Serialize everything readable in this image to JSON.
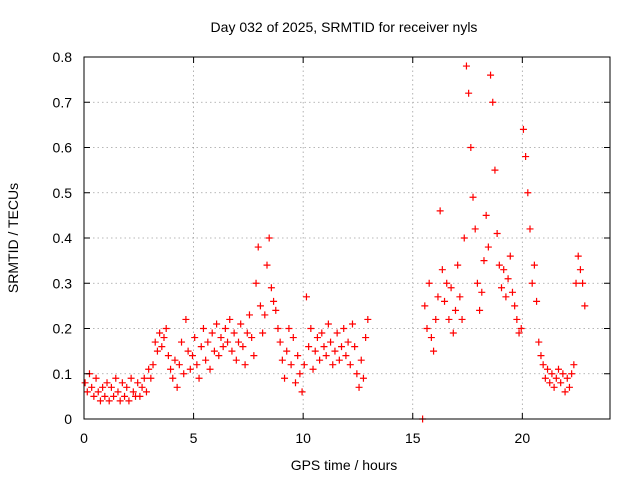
{
  "chart_data": {
    "type": "scatter",
    "title": "Day 032 of 2025, SRMTID for receiver nyls",
    "xlabel": "GPS time / hours",
    "ylabel": "SRMTID / TECUs",
    "xlim": [
      0,
      24
    ],
    "ylim": [
      0,
      0.8
    ],
    "xticks": [
      0,
      5,
      10,
      15,
      20
    ],
    "xtick_labels": [
      "0",
      "5",
      "10",
      "15",
      "20"
    ],
    "yticks": [
      0,
      0.1,
      0.2,
      0.3,
      0.4,
      0.5,
      0.6,
      0.7,
      0.8
    ],
    "ytick_labels": [
      "0",
      "0.1",
      "0.2",
      "0.3",
      "0.4",
      "0.5",
      "0.6",
      "0.7",
      "0.8"
    ],
    "grid": true,
    "marker": "+",
    "series": [
      {
        "name": "SRMTID",
        "color": "#ff0000",
        "points": [
          [
            0.05,
            0.08
          ],
          [
            0.15,
            0.06
          ],
          [
            0.25,
            0.1
          ],
          [
            0.35,
            0.07
          ],
          [
            0.45,
            0.05
          ],
          [
            0.55,
            0.09
          ],
          [
            0.65,
            0.06
          ],
          [
            0.75,
            0.04
          ],
          [
            0.85,
            0.07
          ],
          [
            0.95,
            0.05
          ],
          [
            1.05,
            0.08
          ],
          [
            1.15,
            0.04
          ],
          [
            1.25,
            0.07
          ],
          [
            1.35,
            0.05
          ],
          [
            1.45,
            0.09
          ],
          [
            1.55,
            0.06
          ],
          [
            1.65,
            0.04
          ],
          [
            1.75,
            0.08
          ],
          [
            1.85,
            0.05
          ],
          [
            1.95,
            0.07
          ],
          [
            2.05,
            0.04
          ],
          [
            2.15,
            0.09
          ],
          [
            2.25,
            0.06
          ],
          [
            2.35,
            0.05
          ],
          [
            2.45,
            0.08
          ],
          [
            2.55,
            0.05
          ],
          [
            2.65,
            0.07
          ],
          [
            2.75,
            0.09
          ],
          [
            2.85,
            0.06
          ],
          [
            2.95,
            0.11
          ],
          [
            3.05,
            0.09
          ],
          [
            3.15,
            0.12
          ],
          [
            3.25,
            0.17
          ],
          [
            3.35,
            0.15
          ],
          [
            3.45,
            0.19
          ],
          [
            3.55,
            0.16
          ],
          [
            3.65,
            0.18
          ],
          [
            3.75,
            0.2
          ],
          [
            3.85,
            0.14
          ],
          [
            3.95,
            0.11
          ],
          [
            4.05,
            0.09
          ],
          [
            4.15,
            0.13
          ],
          [
            4.25,
            0.07
          ],
          [
            4.35,
            0.12
          ],
          [
            4.45,
            0.17
          ],
          [
            4.55,
            0.1
          ],
          [
            4.65,
            0.22
          ],
          [
            4.75,
            0.15
          ],
          [
            4.85,
            0.11
          ],
          [
            4.95,
            0.14
          ],
          [
            5.05,
            0.18
          ],
          [
            5.15,
            0.12
          ],
          [
            5.25,
            0.09
          ],
          [
            5.35,
            0.16
          ],
          [
            5.45,
            0.2
          ],
          [
            5.55,
            0.13
          ],
          [
            5.65,
            0.17
          ],
          [
            5.75,
            0.11
          ],
          [
            5.85,
            0.19
          ],
          [
            5.95,
            0.15
          ],
          [
            6.05,
            0.21
          ],
          [
            6.15,
            0.14
          ],
          [
            6.25,
            0.18
          ],
          [
            6.35,
            0.16
          ],
          [
            6.45,
            0.2
          ],
          [
            6.55,
            0.17
          ],
          [
            6.65,
            0.22
          ],
          [
            6.75,
            0.15
          ],
          [
            6.85,
            0.19
          ],
          [
            6.95,
            0.13
          ],
          [
            7.05,
            0.17
          ],
          [
            7.15,
            0.21
          ],
          [
            7.25,
            0.16
          ],
          [
            7.35,
            0.12
          ],
          [
            7.45,
            0.19
          ],
          [
            7.55,
            0.23
          ],
          [
            7.65,
            0.18
          ],
          [
            7.75,
            0.14
          ],
          [
            7.85,
            0.3
          ],
          [
            7.95,
            0.38
          ],
          [
            8.05,
            0.25
          ],
          [
            8.15,
            0.19
          ],
          [
            8.25,
            0.23
          ],
          [
            8.35,
            0.34
          ],
          [
            8.45,
            0.4
          ],
          [
            8.55,
            0.29
          ],
          [
            8.65,
            0.26
          ],
          [
            8.75,
            0.24
          ],
          [
            8.85,
            0.2
          ],
          [
            8.95,
            0.17
          ],
          [
            9.05,
            0.13
          ],
          [
            9.15,
            0.09
          ],
          [
            9.25,
            0.15
          ],
          [
            9.35,
            0.2
          ],
          [
            9.45,
            0.12
          ],
          [
            9.55,
            0.18
          ],
          [
            9.65,
            0.08
          ],
          [
            9.75,
            0.14
          ],
          [
            9.85,
            0.1
          ],
          [
            9.95,
            0.06
          ],
          [
            10.05,
            0.12
          ],
          [
            10.15,
            0.27
          ],
          [
            10.25,
            0.16
          ],
          [
            10.35,
            0.2
          ],
          [
            10.45,
            0.11
          ],
          [
            10.55,
            0.15
          ],
          [
            10.65,
            0.18
          ],
          [
            10.75,
            0.13
          ],
          [
            10.85,
            0.19
          ],
          [
            10.95,
            0.16
          ],
          [
            11.05,
            0.14
          ],
          [
            11.15,
            0.21
          ],
          [
            11.25,
            0.17
          ],
          [
            11.35,
            0.12
          ],
          [
            11.45,
            0.15
          ],
          [
            11.55,
            0.19
          ],
          [
            11.65,
            0.13
          ],
          [
            11.75,
            0.16
          ],
          [
            11.85,
            0.2
          ],
          [
            11.95,
            0.14
          ],
          [
            12.05,
            0.17
          ],
          [
            12.15,
            0.12
          ],
          [
            12.25,
            0.21
          ],
          [
            12.35,
            0.16
          ],
          [
            12.45,
            0.1
          ],
          [
            12.55,
            0.07
          ],
          [
            12.65,
            0.13
          ],
          [
            12.75,
            0.09
          ],
          [
            12.85,
            0.18
          ],
          [
            12.95,
            0.22
          ],
          [
            15.45,
            0.0
          ],
          [
            15.55,
            0.25
          ],
          [
            15.65,
            0.2
          ],
          [
            15.75,
            0.3
          ],
          [
            15.85,
            0.18
          ],
          [
            15.95,
            0.15
          ],
          [
            16.05,
            0.22
          ],
          [
            16.15,
            0.27
          ],
          [
            16.25,
            0.46
          ],
          [
            16.35,
            0.33
          ],
          [
            16.45,
            0.26
          ],
          [
            16.55,
            0.3
          ],
          [
            16.65,
            0.22
          ],
          [
            16.75,
            0.29
          ],
          [
            16.85,
            0.19
          ],
          [
            16.95,
            0.24
          ],
          [
            17.05,
            0.34
          ],
          [
            17.15,
            0.27
          ],
          [
            17.25,
            0.22
          ],
          [
            17.35,
            0.4
          ],
          [
            17.45,
            0.78
          ],
          [
            17.55,
            0.72
          ],
          [
            17.65,
            0.6
          ],
          [
            17.75,
            0.49
          ],
          [
            17.85,
            0.42
          ],
          [
            17.95,
            0.3
          ],
          [
            18.05,
            0.24
          ],
          [
            18.15,
            0.28
          ],
          [
            18.25,
            0.35
          ],
          [
            18.35,
            0.45
          ],
          [
            18.45,
            0.38
          ],
          [
            18.55,
            0.76
          ],
          [
            18.65,
            0.7
          ],
          [
            18.75,
            0.55
          ],
          [
            18.85,
            0.41
          ],
          [
            18.95,
            0.34
          ],
          [
            19.05,
            0.29
          ],
          [
            19.15,
            0.33
          ],
          [
            19.25,
            0.27
          ],
          [
            19.35,
            0.31
          ],
          [
            19.45,
            0.36
          ],
          [
            19.55,
            0.28
          ],
          [
            19.65,
            0.25
          ],
          [
            19.75,
            0.22
          ],
          [
            19.85,
            0.19
          ],
          [
            19.95,
            0.2
          ],
          [
            20.05,
            0.64
          ],
          [
            20.15,
            0.58
          ],
          [
            20.25,
            0.5
          ],
          [
            20.35,
            0.42
          ],
          [
            20.45,
            0.3
          ],
          [
            20.55,
            0.34
          ],
          [
            20.65,
            0.26
          ],
          [
            20.75,
            0.17
          ],
          [
            20.85,
            0.14
          ],
          [
            20.95,
            0.12
          ],
          [
            21.05,
            0.09
          ],
          [
            21.15,
            0.11
          ],
          [
            21.25,
            0.08
          ],
          [
            21.35,
            0.1
          ],
          [
            21.45,
            0.07
          ],
          [
            21.55,
            0.09
          ],
          [
            21.65,
            0.11
          ],
          [
            21.75,
            0.08
          ],
          [
            21.85,
            0.1
          ],
          [
            21.95,
            0.06
          ],
          [
            22.05,
            0.09
          ],
          [
            22.15,
            0.07
          ],
          [
            22.25,
            0.1
          ],
          [
            22.35,
            0.12
          ],
          [
            22.45,
            0.3
          ],
          [
            22.55,
            0.36
          ],
          [
            22.65,
            0.33
          ],
          [
            22.75,
            0.3
          ],
          [
            22.85,
            0.25
          ]
        ]
      }
    ]
  }
}
